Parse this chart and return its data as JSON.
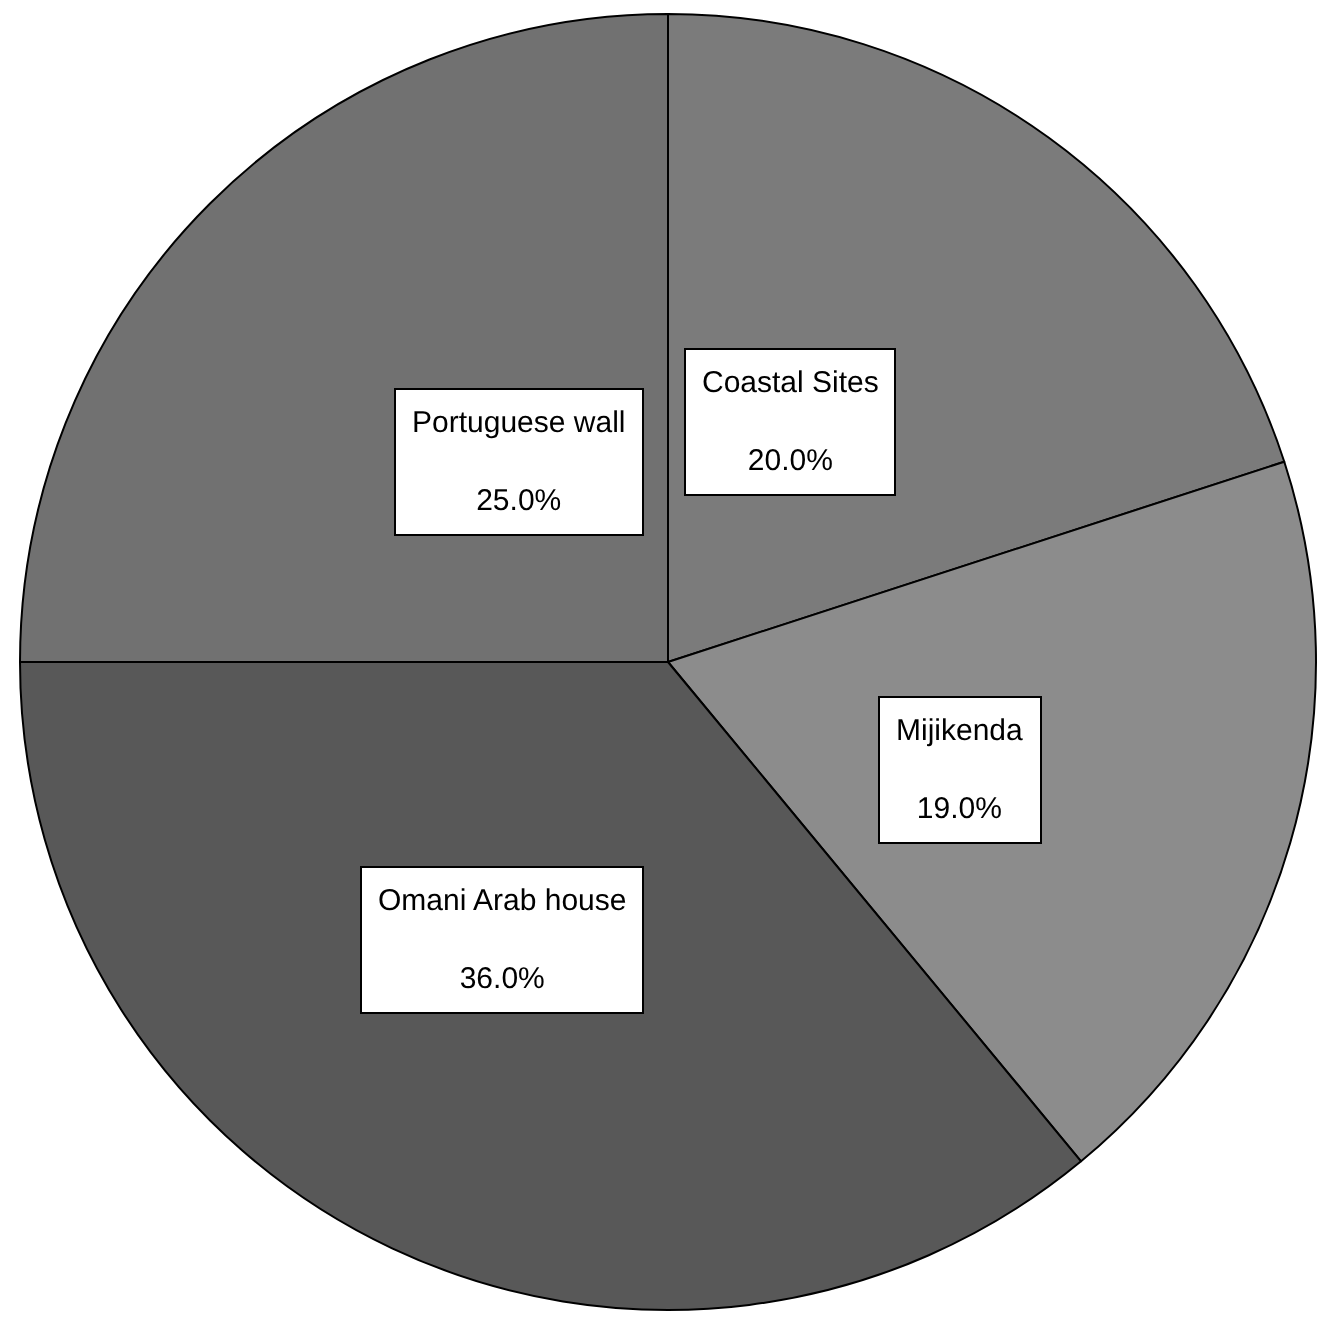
{
  "chart_data": {
    "type": "pie",
    "categories": [
      "Coastal Sites",
      "Mijikenda",
      "Omani Arab house",
      "Portuguese wall"
    ],
    "values": [
      20.0,
      19.0,
      36.0,
      25.0
    ],
    "value_labels": [
      "20.0%",
      "19.0%",
      "36.0%",
      "25.0%"
    ],
    "colors": [
      "#7b7b7b",
      "#8c8c8c",
      "#585858",
      "#717171"
    ],
    "legend": false
  }
}
